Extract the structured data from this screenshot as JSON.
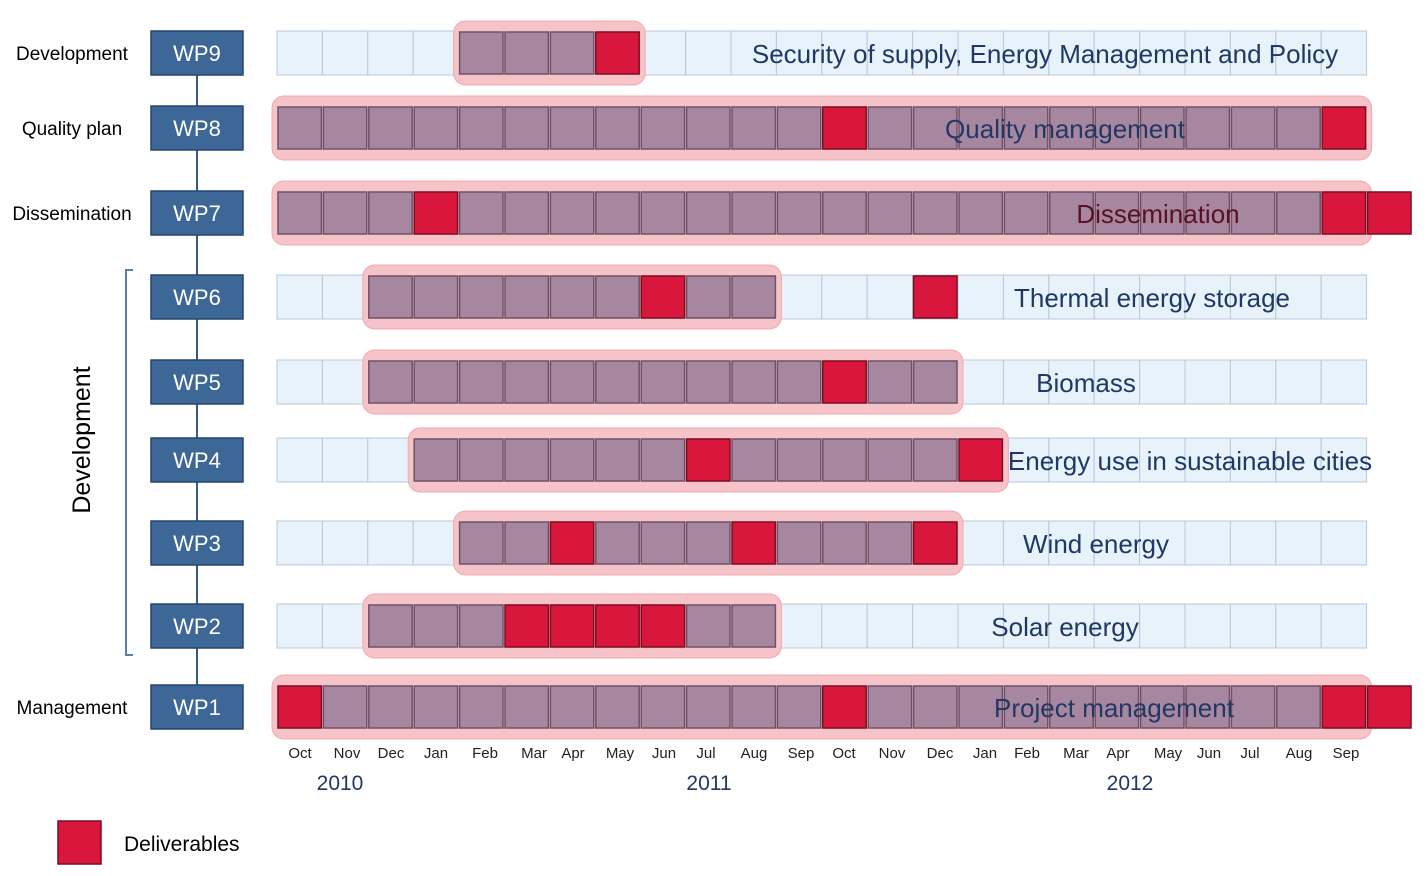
{
  "legend": {
    "label": "Deliverables"
  },
  "side_group_label": "Development",
  "colors": {
    "cell_empty": "#e7f2fb",
    "cell_empty_border": "#b7c9d8",
    "cell_active": "#a7879f",
    "cell_active_border": "#6e5168",
    "deliverable": "#d9173d",
    "deliverable_border": "#7a0d22",
    "band": "#f6c4c8",
    "wp_box": "#3d6796",
    "wp_box_border": "#24476e",
    "connector": "#355a84",
    "title_dark": "#1f3864",
    "title_red": "#5a1020"
  },
  "timeline": {
    "months": [
      "Oct",
      "Nov",
      "Dec",
      "Jan",
      "Feb",
      "Mar",
      "Apr",
      "May",
      "Jun",
      "Jul",
      "Aug",
      "Sep",
      "Oct",
      "Nov",
      "Dec",
      "Jan",
      "Feb",
      "Mar",
      "Apr",
      "May",
      "Jun",
      "Jul",
      "Aug",
      "Sep"
    ],
    "years": [
      "2010",
      "2011",
      "2012"
    ]
  },
  "chart_data": {
    "type": "gantt",
    "packages": [
      {
        "category": "Development",
        "id": "WP9",
        "title": "Security of supply, Energy Management and Policy",
        "title_color": "dark",
        "active": [
          4,
          6
        ],
        "deliverables": [
          7
        ],
        "grid": true
      },
      {
        "category": "Quality plan",
        "id": "WP8",
        "title": "Quality management",
        "title_color": "dark",
        "active": [
          0,
          23
        ],
        "deliverables": [
          12,
          23
        ],
        "grid": false
      },
      {
        "category": "Dissemination",
        "id": "WP7",
        "title": "Dissemination",
        "title_color": "red",
        "active": [
          0,
          23
        ],
        "deliverables": [
          3,
          23,
          24
        ],
        "grid": false
      },
      {
        "category": "",
        "id": "WP6",
        "title": "Thermal energy storage",
        "title_color": "dark",
        "active": [
          2,
          10
        ],
        "deliverables": [
          8,
          14
        ],
        "grid": true
      },
      {
        "category": "",
        "id": "WP5",
        "title": "Biomass",
        "title_color": "dark",
        "active": [
          2,
          14
        ],
        "deliverables": [
          12
        ],
        "grid": true
      },
      {
        "category": "",
        "id": "WP4",
        "title": "Energy use in sustainable cities",
        "title_color": "dark",
        "active": [
          3,
          14
        ],
        "deliverables": [
          9,
          15
        ],
        "grid": true
      },
      {
        "category": "",
        "id": "WP3",
        "title": "Wind energy",
        "title_color": "dark",
        "active": [
          4,
          13
        ],
        "deliverables": [
          6,
          10,
          14
        ],
        "grid": true
      },
      {
        "category": "",
        "id": "WP2",
        "title": "Solar energy",
        "title_color": "dark",
        "active": [
          2,
          10
        ],
        "deliverables": [
          5,
          6,
          7,
          8
        ],
        "grid": true
      },
      {
        "category": "Management",
        "id": "WP1",
        "title": "Project management",
        "title_color": "dark",
        "active": [
          0,
          23
        ],
        "deliverables": [
          0,
          12,
          23,
          24
        ],
        "grid": false
      }
    ]
  }
}
